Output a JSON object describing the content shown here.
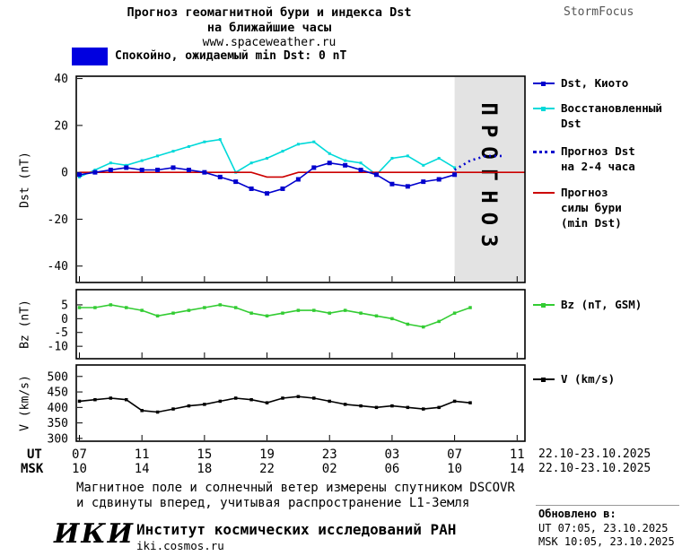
{
  "header": {
    "title_line1": "Прогноз геомагнитной бури и индекса Dst",
    "title_line2": "на ближайшие часы",
    "site": "www.spaceweather.ru",
    "brand": "StormFocus"
  },
  "status": {
    "text": "Спокойно, ожидаемый min Dst: 0 nT",
    "swatch_color": "#0000e0"
  },
  "colors": {
    "kyoto": "#0000cd",
    "recovered": "#00d9d9",
    "forecast": "#0000cd",
    "storm": "#cc0000",
    "bz": "#33cc33",
    "v": "#000000",
    "band": "#e3e3e3",
    "band_text": "#b5b5b5"
  },
  "forecast_band_text": "ПРОГНОЗ",
  "legend": {
    "kyoto": [
      "Dst, Киото"
    ],
    "recovered": [
      "Восстановленный",
      "Dst"
    ],
    "forecast": [
      "Прогноз Dst",
      "на 2-4 часа"
    ],
    "storm": [
      "Прогноз",
      "силы бури",
      "(min Dst)"
    ],
    "bz": "Bz (nT, GSM)",
    "v": "V (km/s)"
  },
  "axis": {
    "dst_label": "Dst (nT)",
    "bz_label": "Bz (nT)",
    "v_label": "V (km/s)",
    "ut_label": "UT",
    "msk_label": "MSK",
    "ut_date": "22.10-23.10.2025",
    "msk_date": "22.10-23.10.2025"
  },
  "xticks_hours": [
    7,
    11,
    15,
    19,
    23,
    27,
    31,
    35
  ],
  "xaxis": {
    "ut_ticks": [
      "07",
      "11",
      "15",
      "19",
      "23",
      "03",
      "07",
      "11"
    ],
    "msk_ticks": [
      "10",
      "14",
      "18",
      "22",
      "02",
      "06",
      "10",
      "14"
    ]
  },
  "chart_data": [
    {
      "type": "line",
      "title": "Прогноз геомагнитной бури и индекса Dst на ближайшие часы",
      "ylabel": "Dst (nT)",
      "xlabel": "UT/MSK, 22.10-23.10.2025",
      "xlim": [
        6.8,
        35.5
      ],
      "ylim": [
        -47,
        41
      ],
      "yticks": [
        -40,
        -20,
        0,
        20,
        40
      ],
      "grid": false,
      "legend_position": "right",
      "forecast_band_start": 31,
      "series": [
        {
          "name": "Восстановленный Dst",
          "color": "#00d9d9",
          "marker": true,
          "msize": 3,
          "x": [
            7,
            8,
            9,
            10,
            11,
            12,
            13,
            14,
            15,
            16,
            17,
            18,
            19,
            20,
            21,
            22,
            23,
            24,
            25,
            26,
            27,
            28,
            29,
            30,
            31
          ],
          "values": [
            -2,
            1,
            4,
            3,
            5,
            7,
            9,
            11,
            13,
            14,
            0,
            4,
            6,
            9,
            12,
            13,
            8,
            5,
            4,
            -1,
            6,
            7,
            3,
            6,
            2
          ]
        },
        {
          "name": "Прогноз силы бури (min Dst)",
          "color": "#cc0000",
          "x": [
            7,
            18,
            19,
            20,
            21,
            35.5
          ],
          "values": [
            0,
            0,
            -2,
            -2,
            0,
            0
          ]
        },
        {
          "name": "Dst, Киото",
          "color": "#0000cd",
          "marker": true,
          "msize": 5,
          "x": [
            7,
            8,
            9,
            10,
            11,
            12,
            13,
            14,
            15,
            16,
            17,
            18,
            19,
            20,
            21,
            22,
            23,
            24,
            25,
            26,
            27,
            28,
            29,
            30,
            31
          ],
          "values": [
            -1,
            0,
            1,
            2,
            1,
            1,
            2,
            1,
            0,
            -2,
            -4,
            -7,
            -9,
            -7,
            -3,
            2,
            4,
            3,
            1,
            -1,
            -5,
            -6,
            -4,
            -3,
            -1
          ]
        },
        {
          "name": "Прогноз Dst на 2-4 часа",
          "color": "#0000cd",
          "dash": true,
          "x": [
            31,
            32,
            33,
            34
          ],
          "values": [
            1,
            5,
            7,
            7
          ]
        }
      ]
    },
    {
      "type": "line",
      "ylabel": "Bz (nT)",
      "xlim": [
        6.8,
        35.5
      ],
      "ylim": [
        -14.5,
        10.5
      ],
      "yticks": [
        5,
        0,
        -5,
        -10
      ],
      "grid": false,
      "series": [
        {
          "name": "Bz (nT, GSM)",
          "color": "#33cc33",
          "marker": true,
          "msize": 3.5,
          "x": [
            7,
            8,
            9,
            10,
            11,
            12,
            13,
            14,
            15,
            16,
            17,
            18,
            19,
            20,
            21,
            22,
            23,
            24,
            25,
            26,
            27,
            28,
            29,
            30,
            31,
            32
          ],
          "values": [
            4,
            4,
            5,
            4,
            3,
            1,
            2,
            3,
            4,
            5,
            4,
            2,
            1,
            2,
            3,
            3,
            2,
            3,
            2,
            1,
            0,
            -2,
            -3,
            -1,
            2,
            4
          ]
        }
      ]
    },
    {
      "type": "line",
      "ylabel": "V (km/s)",
      "xlim": [
        6.8,
        35.5
      ],
      "ylim": [
        291,
        537
      ],
      "yticks": [
        300,
        350,
        400,
        450,
        500
      ],
      "grid": false,
      "series": [
        {
          "name": "V (km/s)",
          "color": "#000000",
          "marker": true,
          "msize": 3.5,
          "x": [
            7,
            8,
            9,
            10,
            11,
            12,
            13,
            14,
            15,
            16,
            17,
            18,
            19,
            20,
            21,
            22,
            23,
            24,
            25,
            26,
            27,
            28,
            29,
            30,
            31,
            32
          ],
          "values": [
            420,
            425,
            430,
            425,
            390,
            385,
            395,
            405,
            410,
            420,
            430,
            425,
            415,
            430,
            435,
            430,
            420,
            410,
            405,
            400,
            405,
            400,
            395,
            400,
            420,
            415
          ]
        }
      ]
    }
  ],
  "footnote": {
    "line1": "Магнитное поле и солнечный ветер измерены спутником DSCOVR",
    "line2": "и сдвинуты вперед, учитывая распространение L1-Земля"
  },
  "footer": {
    "logo": "ИКИ",
    "institute": "Институт космических исследований РАН",
    "site": "iki.cosmos.ru",
    "updated_label": "Обновлено в:",
    "updated_ut": "UT  07:05, 23.10.2025",
    "updated_msk": "MSK 10:05, 23.10.2025"
  }
}
